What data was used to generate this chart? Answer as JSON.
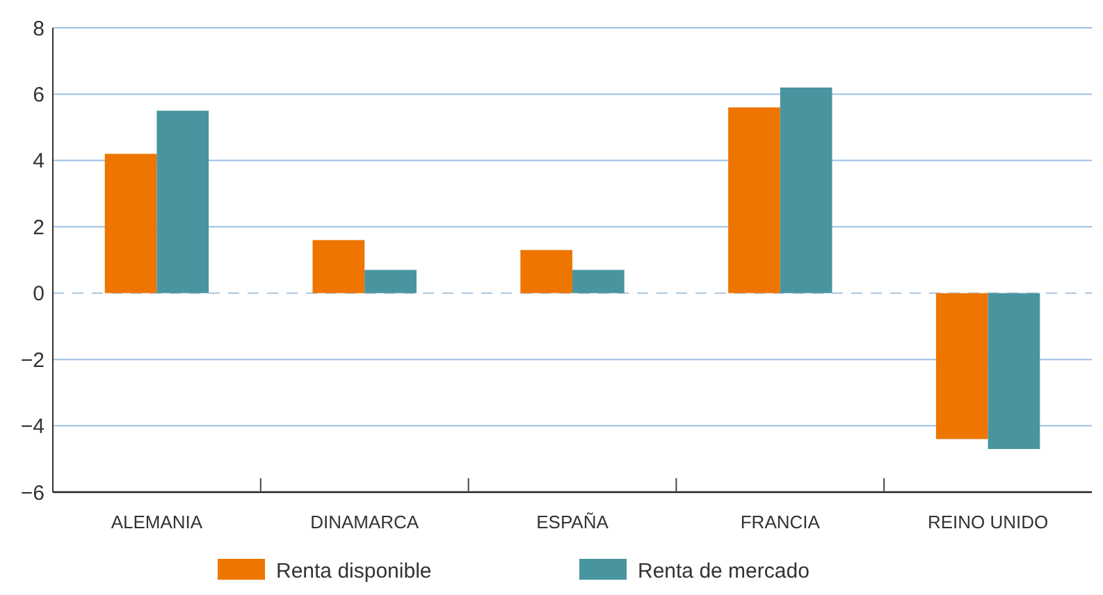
{
  "chart_data": {
    "type": "bar",
    "categories": [
      "ALEMANIA",
      "DINAMARCA",
      "ESPAÑA",
      "FRANCIA",
      "REINO UNIDO"
    ],
    "series": [
      {
        "name": "Renta disponible",
        "color": "#ed7500",
        "values": [
          4.2,
          1.6,
          1.3,
          5.6,
          -4.4
        ]
      },
      {
        "name": "Renta de mercado",
        "color": "#4895a0",
        "values": [
          5.5,
          0.7,
          0.7,
          6.2,
          -4.7
        ]
      }
    ],
    "ylim": [
      -6,
      8
    ],
    "yticks": [
      {
        "value": -6,
        "label": "−6"
      },
      {
        "value": -4,
        "label": "−4"
      },
      {
        "value": -2,
        "label": "−2"
      },
      0,
      2,
      4,
      6,
      8
    ],
    "grid": "y",
    "legend": "bottom",
    "ref_lines": [
      {
        "axis": "y",
        "value": 0,
        "color": "#b8cfe6",
        "line_style": "dashed"
      }
    ]
  }
}
